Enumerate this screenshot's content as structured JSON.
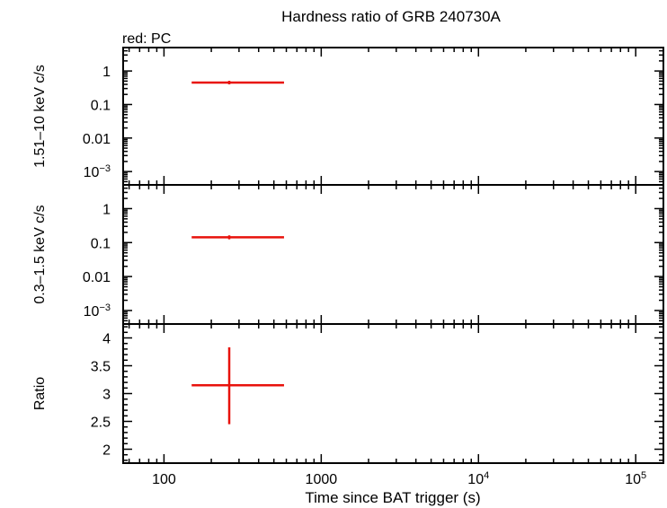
{
  "chart_data": {
    "type": "scatter",
    "title": "Hardness ratio of GRB 240730A",
    "subtitle": "red: PC",
    "xlabel": "Time since BAT trigger (s)",
    "x_scale": "log",
    "xlim": [
      55,
      150000
    ],
    "x_ticks": [
      {
        "value": 100,
        "label": "100",
        "sup": ""
      },
      {
        "value": 1000,
        "label": "1000",
        "sup": ""
      },
      {
        "value": 10000,
        "label": "10",
        "sup": "4"
      },
      {
        "value": 100000,
        "label": "10",
        "sup": "5"
      }
    ],
    "series_color": "#e8120c",
    "panels": [
      {
        "ylabel": "1.51–10 keV c/s",
        "y_scale": "log",
        "ylim": [
          0.0004,
          5
        ],
        "y_ticks": [
          {
            "value": 1,
            "label": "1",
            "sup": ""
          },
          {
            "value": 0.1,
            "label": "0.1",
            "sup": ""
          },
          {
            "value": 0.01,
            "label": "0.01",
            "sup": ""
          },
          {
            "value": 0.001,
            "label": "10",
            "sup": "−3"
          }
        ],
        "points": [
          {
            "x": 260,
            "xmin": 150,
            "xmax": 580,
            "y": 0.45,
            "ymin": 0.4,
            "ymax": 0.51
          }
        ]
      },
      {
        "ylabel": "0.3–1.5 keV c/s",
        "y_scale": "log",
        "ylim": [
          0.0004,
          5
        ],
        "y_ticks": [
          {
            "value": 1,
            "label": "1",
            "sup": ""
          },
          {
            "value": 0.1,
            "label": "0.1",
            "sup": ""
          },
          {
            "value": 0.01,
            "label": "0.01",
            "sup": ""
          },
          {
            "value": 0.001,
            "label": "10",
            "sup": "−3"
          }
        ],
        "points": [
          {
            "x": 260,
            "xmin": 150,
            "xmax": 580,
            "y": 0.143,
            "ymin": 0.125,
            "ymax": 0.163
          }
        ]
      },
      {
        "ylabel": "Ratio",
        "y_scale": "linear",
        "ylim": [
          1.75,
          4.25
        ],
        "y_ticks": [
          {
            "value": 4,
            "label": "4",
            "sup": ""
          },
          {
            "value": 3.5,
            "label": "3.5",
            "sup": ""
          },
          {
            "value": 3,
            "label": "3",
            "sup": ""
          },
          {
            "value": 2.5,
            "label": "2.5",
            "sup": ""
          },
          {
            "value": 2,
            "label": "2",
            "sup": ""
          }
        ],
        "points": [
          {
            "x": 260,
            "xmin": 150,
            "xmax": 580,
            "y": 3.15,
            "ymin": 2.45,
            "ymax": 3.83
          }
        ]
      }
    ]
  }
}
